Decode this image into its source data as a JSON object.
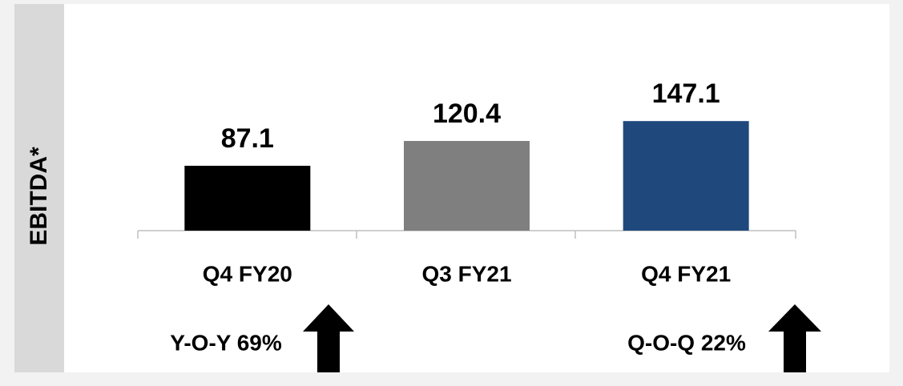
{
  "chart_data": {
    "type": "bar",
    "ylabel": "EBITDA*",
    "categories": [
      "Q4 FY20",
      "Q3 FY21",
      "Q4 FY21"
    ],
    "values": [
      87.1,
      120.4,
      147.1
    ],
    "colors": [
      "#000000",
      "#7f7f7f",
      "#1f497d"
    ],
    "annotations": [
      "Y-O-Y 69%",
      "Q-O-Q 22%"
    ]
  }
}
